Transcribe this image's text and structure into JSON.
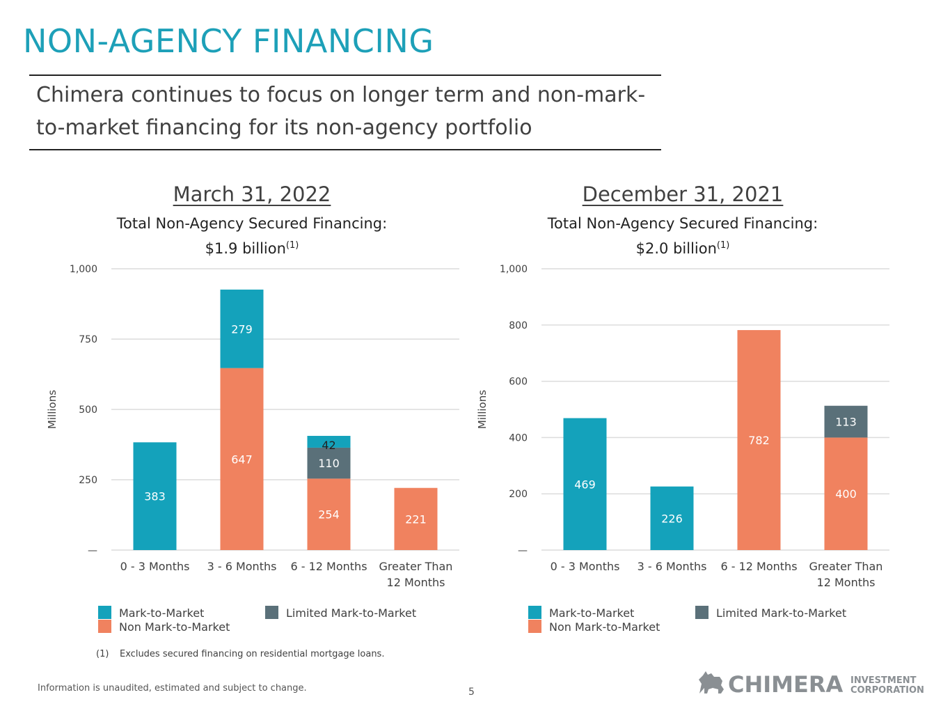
{
  "page": {
    "title": "NON-AGENCY FINANCING",
    "subtitle_line1": "Chimera continues to focus on longer term and non-mark-",
    "subtitle_line2": "to-market financing for its non-agency portfolio",
    "footnote_marker": "(1)",
    "footnote_text": "Excludes secured financing on residential mortgage loans.",
    "disclaimer": "Information is unaudited, estimated and subject to change.",
    "page_number": "5",
    "logo_text": "CHIMERA",
    "logo_sub1": "INVESTMENT",
    "logo_sub2": "CORPORATION"
  },
  "colors": {
    "mark_to_market": "#14a2bb",
    "non_mark_to_market": "#f0825f",
    "limited_mark_to_market": "#5a7079",
    "title": "#1da0b8"
  },
  "charts": [
    {
      "date": "March 31, 2022",
      "subtitle_line1": "Total Non-Agency Secured Financing:",
      "subtitle_line2": "$1.9 billion",
      "subtitle_sup": "(1)"
    },
    {
      "date": "December 31, 2021",
      "subtitle_line1": "Total Non-Agency Secured Financing:",
      "subtitle_line2": "$2.0 billion",
      "subtitle_sup": "(1)"
    }
  ],
  "legend": {
    "mark_to_market": "Mark-to-Market",
    "non_mark_to_market": "Non Mark-to-Market",
    "limited_mark_to_market": "Limited Mark-to-Market"
  },
  "chart_data": [
    {
      "type": "bar",
      "stacked": true,
      "title": "March 31, 2022",
      "ylabel": "Millions",
      "ylim": [
        0,
        1000
      ],
      "yticks": [
        0,
        250,
        500,
        750,
        1000
      ],
      "ytick_labels": [
        "—",
        "250",
        "500",
        "750",
        "1,000"
      ],
      "categories": [
        "0 - 3 Months",
        "3 - 6 Months",
        "6 - 12 Months",
        "Greater Than 12 Months"
      ],
      "category_lines": [
        [
          "0 - 3 Months"
        ],
        [
          "3 - 6 Months"
        ],
        [
          "6 - 12 Months"
        ],
        [
          "Greater Than",
          "12 Months"
        ]
      ],
      "series": [
        {
          "name": "Non Mark-to-Market",
          "key": "non_mark_to_market",
          "values": [
            0,
            647,
            254,
            221
          ]
        },
        {
          "name": "Limited Mark-to-Market",
          "key": "limited_mark_to_market",
          "values": [
            0,
            0,
            110,
            0
          ]
        },
        {
          "name": "Mark-to-Market",
          "key": "mark_to_market",
          "values": [
            383,
            279,
            42,
            0
          ]
        }
      ]
    },
    {
      "type": "bar",
      "stacked": true,
      "title": "December 31, 2021",
      "ylabel": "Millions",
      "ylim": [
        0,
        1000
      ],
      "yticks": [
        0,
        200,
        400,
        600,
        800,
        1000
      ],
      "ytick_labels": [
        "—",
        "200",
        "400",
        "600",
        "800",
        "1,000"
      ],
      "categories": [
        "0 - 3 Months",
        "3 - 6 Months",
        "6 - 12 Months",
        "Greater Than 12 Months"
      ],
      "category_lines": [
        [
          "0 - 3 Months"
        ],
        [
          "3 - 6 Months"
        ],
        [
          "6 - 12 Months"
        ],
        [
          "Greater Than",
          "12 Months"
        ]
      ],
      "series": [
        {
          "name": "Non Mark-to-Market",
          "key": "non_mark_to_market",
          "values": [
            0,
            0,
            782,
            400
          ]
        },
        {
          "name": "Limited Mark-to-Market",
          "key": "limited_mark_to_market",
          "values": [
            0,
            0,
            0,
            113
          ]
        },
        {
          "name": "Mark-to-Market",
          "key": "mark_to_market",
          "values": [
            469,
            226,
            0,
            0
          ]
        }
      ]
    }
  ]
}
